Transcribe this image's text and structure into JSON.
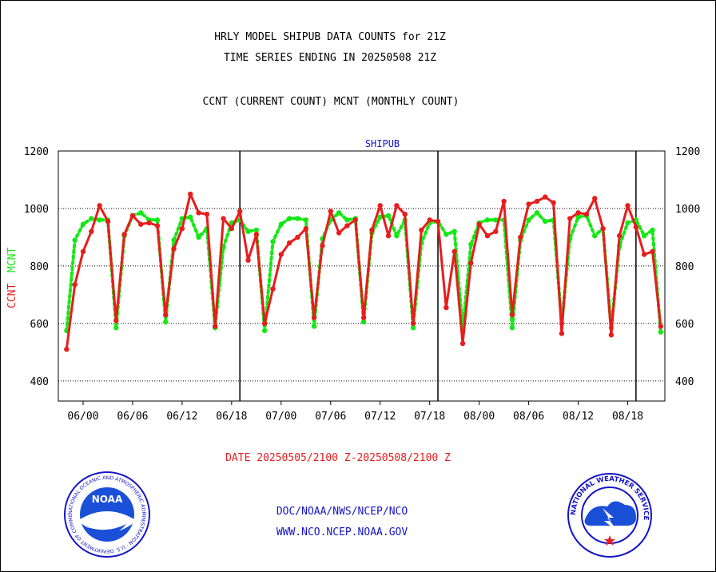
{
  "header": {
    "title_line1": "HRLY MODEL SHIPUB DATA COUNTS for 21Z",
    "title_line2": "TIME SERIES ENDING IN 20250508 21Z",
    "title_line3": "CCNT (CURRENT COUNT) MCNT (MONTHLY COUNT)"
  },
  "footer": {
    "date_range": "DATE 20250505/2100 Z-20250508/2100 Z",
    "org_path": "DOC/NOAA/NWS/NCEP/NCO",
    "website": "WWW.NCO.NCEP.NOAA.GOV"
  },
  "logos": {
    "noaa": {
      "badge": "NOAA",
      "ring_text": "NATIONAL OCEANIC AND ATMOSPHERIC ADMINISTRATION · U.S. DEPARTMENT OF COMMERCE ·"
    },
    "nws": {
      "ring_text": "NATIONAL WEATHER SERVICE"
    }
  },
  "colors": {
    "ccnt": "#e81c1c",
    "mcnt": "#14e814",
    "panel_label": "#1414c8",
    "grid": "#000000"
  },
  "chart_data": {
    "type": "line",
    "panel_label": "SHIPUB",
    "ylabel_ccnt": "CCNT",
    "ylabel_mcnt": "MCNT",
    "ylim": [
      330,
      1200
    ],
    "y_ticks": [
      400,
      600,
      800,
      1000,
      1200
    ],
    "grid": "horizontal dotted",
    "x_range": [
      -1,
      72.5
    ],
    "x_ticks": [
      {
        "x": 2,
        "label": "06/00"
      },
      {
        "x": 8,
        "label": "06/06"
      },
      {
        "x": 14,
        "label": "06/12"
      },
      {
        "x": 20,
        "label": "06/18"
      },
      {
        "x": 26,
        "label": "07/00"
      },
      {
        "x": 32,
        "label": "07/06"
      },
      {
        "x": 38,
        "label": "07/12"
      },
      {
        "x": 44,
        "label": "07/18"
      },
      {
        "x": 50,
        "label": "08/00"
      },
      {
        "x": 56,
        "label": "08/06"
      },
      {
        "x": 62,
        "label": "08/12"
      },
      {
        "x": 68,
        "label": "08/18"
      }
    ],
    "day_boundaries": [
      21,
      45,
      69
    ],
    "series": [
      {
        "name": "CCNT",
        "values": [
          510,
          735,
          850,
          920,
          1010,
          955,
          610,
          910,
          975,
          945,
          950,
          940,
          630,
          860,
          930,
          1050,
          985,
          980,
          590,
          965,
          930,
          990,
          820,
          910,
          600,
          720,
          840,
          880,
          900,
          930,
          620,
          870,
          990,
          915,
          940,
          960,
          620,
          925,
          1010,
          905,
          1010,
          980,
          600,
          925,
          960,
          955,
          655,
          850,
          530,
          810,
          945,
          905,
          920,
          1025,
          630,
          900,
          1015,
          1025,
          1040,
          1020,
          565,
          965,
          985,
          980,
          1035,
          930,
          560,
          905,
          1010,
          935,
          840,
          850,
          590
        ]
      },
      {
        "name": "MCNT",
        "values": [
          575,
          890,
          945,
          965,
          960,
          960,
          585,
          905,
          975,
          985,
          960,
          960,
          605,
          890,
          965,
          970,
          900,
          930,
          585,
          865,
          950,
          960,
          920,
          925,
          575,
          885,
          945,
          965,
          965,
          960,
          590,
          895,
          960,
          985,
          960,
          965,
          605,
          915,
          970,
          975,
          905,
          960,
          585,
          880,
          950,
          955,
          910,
          920,
          580,
          875,
          950,
          960,
          960,
          960,
          585,
          890,
          960,
          985,
          955,
          960,
          600,
          895,
          970,
          975,
          905,
          930,
          585,
          870,
          950,
          960,
          905,
          925,
          570
        ]
      }
    ]
  }
}
